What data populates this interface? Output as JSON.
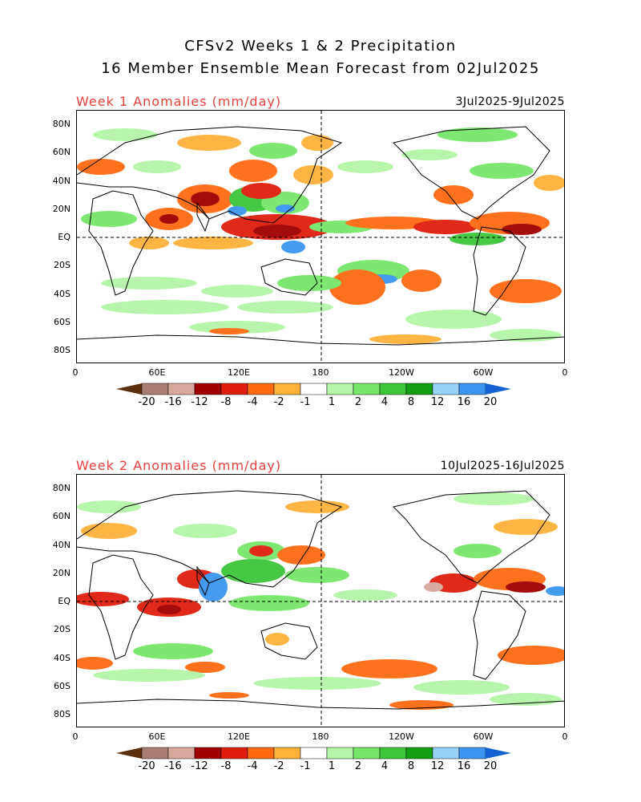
{
  "title_line1": "CFSv2 Weeks 1 & 2 Precipitation",
  "title_line2": "16 Member Ensemble Mean Forecast from 02Jul2025",
  "panels": [
    {
      "title": "Week 1 Anomalies (mm/day)",
      "dates": "3Jul2025-9Jul2025"
    },
    {
      "title": "Week 2 Anomalies (mm/day)",
      "dates": "10Jul2025-16Jul2025"
    }
  ],
  "lat_labels": [
    "80N",
    "60N",
    "40N",
    "20N",
    "EQ",
    "20S",
    "40S",
    "60S",
    "80S"
  ],
  "lon_labels": [
    "0",
    "60E",
    "120E",
    "180",
    "120W",
    "60W",
    "0"
  ],
  "colorbar": {
    "labels": [
      "-20",
      "-16",
      "-12",
      "-8",
      "-4",
      "-2",
      "-1",
      "1",
      "2",
      "4",
      "8",
      "12",
      "16",
      "20"
    ],
    "colors": [
      "#5a2d0c",
      "#a87e74",
      "#d8a89c",
      "#a00000",
      "#e01e0e",
      "#ff6a10",
      "#ffb23a",
      "#ffffff",
      "#b4f5a8",
      "#78e66a",
      "#3ec63a",
      "#12a012",
      "#96d2fa",
      "#3c96f0",
      "#1462d2"
    ]
  },
  "colors": {
    "title_red": "#e8413c"
  }
}
